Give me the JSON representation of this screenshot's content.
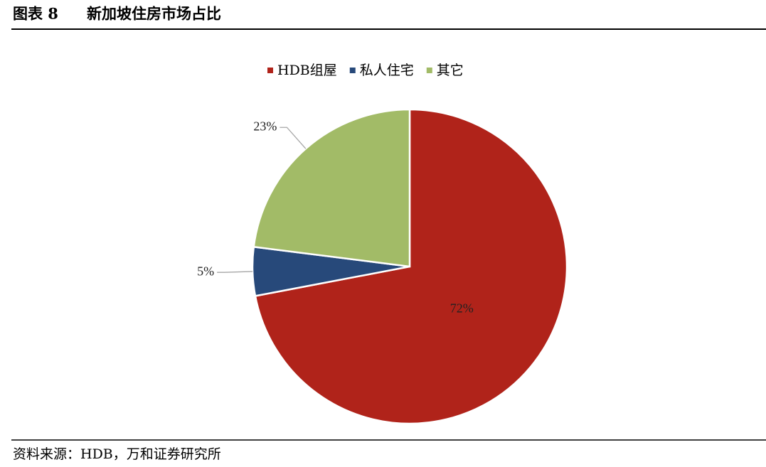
{
  "header": {
    "figure_number": "图表 8",
    "title": "新加坡住房市场占比"
  },
  "chart_data": {
    "type": "pie",
    "categories": [
      "HDB组屋",
      "私人住宅",
      "其它"
    ],
    "values": [
      72,
      5,
      23
    ],
    "value_labels": [
      "72%",
      "5%",
      "23%"
    ],
    "colors": [
      "#b0231a",
      "#27497a",
      "#a2bb67"
    ],
    "legend": "top"
  },
  "footer": {
    "source": "资料来源：HDB，万和证券研究所"
  }
}
